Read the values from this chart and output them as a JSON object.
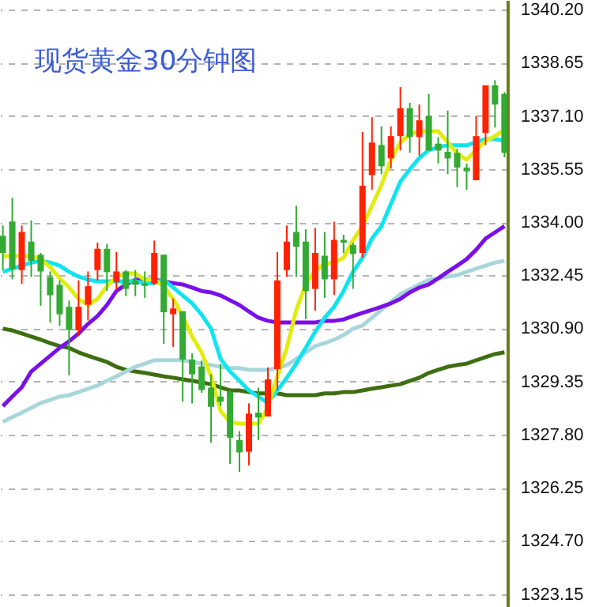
{
  "chart_data": {
    "type": "candlestick",
    "title": "现货黄金30分钟图",
    "categories": [
      null,
      null,
      null,
      null,
      null,
      null,
      null,
      null,
      null,
      null,
      null,
      null,
      null,
      null,
      null,
      null,
      null,
      null,
      null,
      null,
      null,
      null,
      null,
      null,
      null,
      null,
      null,
      null,
      null,
      null,
      null,
      null,
      null,
      null,
      null,
      null,
      null,
      null,
      null,
      null,
      null,
      null,
      null,
      null,
      null,
      null,
      null,
      null,
      null,
      null,
      null,
      null,
      null,
      null
    ],
    "ohlc": [
      [
        1333.6,
        1333.9,
        1332.6,
        1333.1
      ],
      [
        1334.02,
        1334.71,
        1332.33,
        1332.63
      ],
      [
        1332.6,
        1333.9,
        1332.2,
        1333.71
      ],
      [
        1333.43,
        1334.05,
        1332.4,
        1332.87
      ],
      [
        1333.05,
        1333.1,
        1331.56,
        1332.56
      ],
      [
        1332.4,
        1332.56,
        1331.07,
        1331.87
      ],
      [
        1332.17,
        1332.3,
        1330.97,
        1331.31
      ],
      [
        1331.53,
        1331.71,
        1329.53,
        1330.85
      ],
      [
        1330.85,
        1332.3,
        1330.67,
        1331.53
      ],
      [
        1331.59,
        1332.56,
        1331.13,
        1332.13
      ],
      [
        1332.6,
        1333.4,
        1332.3,
        1333.22
      ],
      [
        1333.22,
        1333.37,
        1331.99,
        1332.54
      ],
      [
        1332.25,
        1333.13,
        1332.02,
        1332.56
      ],
      [
        1332.56,
        1332.6,
        1331.84,
        1332.05
      ],
      [
        1332.3,
        1332.6,
        1331.84,
        1332.17
      ],
      [
        1332.21,
        1332.56,
        1331.79,
        1332.14
      ],
      [
        1332.21,
        1333.46,
        1332.17,
        1333.1
      ],
      [
        1333.05,
        1333.05,
        1330.45,
        1331.37
      ],
      [
        1331.31,
        1331.77,
        1330.36,
        1331.48
      ],
      [
        1331.4,
        1331.4,
        1328.76,
        1329.99
      ],
      [
        1329.99,
        1330.17,
        1328.71,
        1329.56
      ],
      [
        1329.79,
        1329.96,
        1329.02,
        1329.1
      ],
      [
        1329.17,
        1329.56,
        1327.56,
        1328.61
      ],
      [
        1328.91,
        1329.86,
        1328.64,
        1328.76
      ],
      [
        1329.05,
        1329.1,
        1326.94,
        1327.71
      ],
      [
        1327.64,
        1327.9,
        1326.71,
        1327.28
      ],
      [
        1327.3,
        1328.71,
        1326.9,
        1328.41
      ],
      [
        1328.44,
        1329.17,
        1327.64,
        1328.3
      ],
      [
        1328.33,
        1329.76,
        1328.33,
        1329.41
      ],
      [
        1329.71,
        1333.13,
        1329.1,
        1332.3
      ],
      [
        1332.6,
        1333.9,
        1332.4,
        1333.43
      ],
      [
        1333.71,
        1334.48,
        1332.4,
        1333.28
      ],
      [
        1333.43,
        1333.79,
        1331.17,
        1331.99
      ],
      [
        1332.05,
        1333.83,
        1331.41,
        1333.1
      ],
      [
        1333.02,
        1333.71,
        1331.79,
        1332.33
      ],
      [
        1332.33,
        1334.01,
        1331.87,
        1333.48
      ],
      [
        1333.48,
        1333.63,
        1333.1,
        1333.4
      ],
      [
        1333.33,
        1333.4,
        1332.05,
        1333.07
      ],
      [
        1333.1,
        1336.63,
        1332.97,
        1335.06
      ],
      [
        1335.37,
        1337.06,
        1334.94,
        1336.32
      ],
      [
        1336.25,
        1336.79,
        1335.4,
        1335.63
      ],
      [
        1335.86,
        1336.79,
        1335.56,
        1336.51
      ],
      [
        1336.51,
        1337.94,
        1336.09,
        1337.32
      ],
      [
        1337.32,
        1337.48,
        1336.02,
        1336.48
      ],
      [
        1336.48,
        1337.43,
        1335.94,
        1336.97
      ],
      [
        1337.09,
        1337.74,
        1336.09,
        1336.09
      ],
      [
        1336.29,
        1336.48,
        1335.71,
        1336.09
      ],
      [
        1336.05,
        1337.25,
        1335.4,
        1335.86
      ],
      [
        1336.02,
        1336.14,
        1335.02,
        1335.59
      ],
      [
        1335.59,
        1335.71,
        1334.94,
        1335.48
      ],
      [
        1335.22,
        1337.09,
        1335.22,
        1336.51
      ],
      [
        1336.6,
        1337.99,
        1336.25,
        1337.99
      ],
      [
        1337.99,
        1338.14,
        1336.76,
        1337.43
      ],
      [
        1337.74,
        1337.79,
        1335.89,
        1336.02
      ]
    ],
    "colors": [
      "#33aa33",
      "#33aa33",
      "#ff2200",
      "#33aa33",
      "#33aa33",
      "#33aa33",
      "#33aa33",
      "#33aa33",
      "#ff2200",
      "#ff2200",
      "#ff2200",
      "#33aa33",
      "#ff2200",
      "#33aa33",
      "#33aa33",
      "#33aa33",
      "#ff2200",
      "#33aa33",
      "#ff2200",
      "#33aa33",
      "#33aa33",
      "#33aa33",
      "#33aa33",
      "#33aa33",
      "#33aa33",
      "#33aa33",
      "#ff2200",
      "#33aa33",
      "#ff2200",
      "#ff2200",
      "#ff2200",
      "#33aa33",
      "#33aa33",
      "#ff2200",
      "#33aa33",
      "#ff2200",
      "#33aa33",
      "#33aa33",
      "#ff2200",
      "#ff2200",
      "#33aa33",
      "#ff2200",
      "#ff2200",
      "#33aa33",
      "#ff2200",
      "#33aa33",
      "#33aa33",
      "#33aa33",
      "#33aa33",
      "#33aa33",
      "#ff2200",
      "#ff2200",
      "#33aa33",
      "#33aa33"
    ],
    "series": [
      {
        "type": "line",
        "color": "#3f6e12",
        "values": [
          1330.89,
          1330.84,
          1330.75,
          1330.66,
          1330.57,
          1330.47,
          1330.38,
          1330.33,
          1330.2,
          1330.1,
          1330.01,
          1329.92,
          1329.78,
          1329.69,
          1329.64,
          1329.6,
          1329.55,
          1329.5,
          1329.46,
          1329.41,
          1329.37,
          1329.32,
          1329.27,
          1329.18,
          1329.09,
          1329.09,
          1329.04,
          1329.0,
          1329.0,
          1329.0,
          1328.95,
          1328.95,
          1328.95,
          1328.95,
          1329.0,
          1329.0,
          1329.04,
          1329.04,
          1329.09,
          1329.14,
          1329.18,
          1329.23,
          1329.27,
          1329.37,
          1329.46,
          1329.6,
          1329.69,
          1329.78,
          1329.83,
          1329.87,
          1329.97,
          1330.06,
          1330.15,
          1330.2
        ]
      },
      {
        "type": "line",
        "color": "#a9d6dc",
        "values": [
          1328.17,
          1328.31,
          1328.44,
          1328.58,
          1328.72,
          1328.81,
          1328.91,
          1328.95,
          1329.04,
          1329.14,
          1329.23,
          1329.37,
          1329.5,
          1329.64,
          1329.78,
          1329.87,
          1329.97,
          1329.97,
          1329.97,
          1329.97,
          1329.92,
          1329.87,
          1329.83,
          1329.78,
          1329.74,
          1329.74,
          1329.69,
          1329.69,
          1329.69,
          1329.74,
          1329.83,
          1330.01,
          1330.2,
          1330.38,
          1330.47,
          1330.57,
          1330.7,
          1330.89,
          1330.98,
          1331.21,
          1331.44,
          1331.67,
          1331.9,
          1332.04,
          1332.18,
          1332.32,
          1332.36,
          1332.41,
          1332.45,
          1332.55,
          1332.64,
          1332.73,
          1332.82,
          1332.87
        ]
      },
      {
        "type": "line",
        "color": "#7a10e8",
        "values": [
          1328.63,
          1328.91,
          1329.18,
          1329.64,
          1329.87,
          1330.1,
          1330.33,
          1330.52,
          1330.75,
          1331.03,
          1331.26,
          1331.58,
          1331.99,
          1332.18,
          1332.32,
          1332.32,
          1332.32,
          1332.27,
          1332.22,
          1332.18,
          1332.09,
          1331.99,
          1331.95,
          1331.86,
          1331.72,
          1331.58,
          1331.39,
          1331.21,
          1331.12,
          1331.07,
          1331.07,
          1331.07,
          1331.07,
          1331.07,
          1331.12,
          1331.12,
          1331.16,
          1331.26,
          1331.35,
          1331.44,
          1331.53,
          1331.63,
          1331.76,
          1331.95,
          1332.09,
          1332.18,
          1332.36,
          1332.55,
          1332.73,
          1332.92,
          1333.19,
          1333.52,
          1333.7,
          1333.88
        ]
      },
      {
        "type": "line",
        "color": "#10e4f0",
        "values": [
          1332.55,
          1332.64,
          1332.73,
          1332.82,
          1332.87,
          1332.82,
          1332.73,
          1332.55,
          1332.41,
          1332.32,
          1332.27,
          1332.27,
          1332.27,
          1332.27,
          1332.27,
          1332.22,
          1332.22,
          1332.32,
          1332.09,
          1331.86,
          1331.63,
          1331.3,
          1330.89,
          1330.01,
          1329.64,
          1329.37,
          1329.09,
          1328.91,
          1328.72,
          1329.09,
          1329.46,
          1329.87,
          1330.33,
          1330.8,
          1331.21,
          1331.53,
          1331.99,
          1332.55,
          1332.96,
          1333.52,
          1333.88,
          1334.53,
          1335.18,
          1335.54,
          1335.87,
          1336.1,
          1336.19,
          1336.24,
          1336.24,
          1336.24,
          1336.33,
          1336.42,
          1336.42,
          1336.37
        ]
      },
      {
        "type": "line",
        "color": "#e2ec10",
        "values": [
          1333.01,
          1333.01,
          1333.01,
          1333.01,
          1332.92,
          1332.69,
          1332.36,
          1332.09,
          1331.76,
          1331.58,
          1331.76,
          1332.13,
          1332.41,
          1332.5,
          1332.5,
          1332.32,
          1332.32,
          1332.13,
          1331.76,
          1331.26,
          1330.66,
          1330.2,
          1329.5,
          1328.49,
          1328.17,
          1328.12,
          1328.12,
          1328.12,
          1328.58,
          1329.5,
          1330.33,
          1331.44,
          1332.18,
          1332.59,
          1332.78,
          1332.82,
          1332.96,
          1333.47,
          1333.88,
          1334.48,
          1335.08,
          1335.82,
          1336.33,
          1336.56,
          1336.65,
          1336.65,
          1336.65,
          1336.33,
          1336.0,
          1335.82,
          1336.1,
          1336.37,
          1336.51,
          1336.7
        ]
      }
    ],
    "ylim": [
      1322.77,
      1340.48
    ],
    "yticks": [
      {
        "value": 1340.2,
        "label": "1340.20"
      },
      {
        "value": 1338.65,
        "label": "1338.65"
      },
      {
        "value": 1337.1,
        "label": "1337.10"
      },
      {
        "value": 1335.55,
        "label": "1335.55"
      },
      {
        "value": 1334.0,
        "label": "1334.00"
      },
      {
        "value": 1332.45,
        "label": "1332.45"
      },
      {
        "value": 1330.9,
        "label": "1330.90"
      },
      {
        "value": 1329.35,
        "label": "1329.35"
      },
      {
        "value": 1327.8,
        "label": "1327.80"
      },
      {
        "value": 1326.25,
        "label": "1326.25"
      },
      {
        "value": 1324.7,
        "label": "1324.70"
      },
      {
        "value": 1323.15,
        "label": "1323.15"
      }
    ],
    "grid": "y"
  }
}
